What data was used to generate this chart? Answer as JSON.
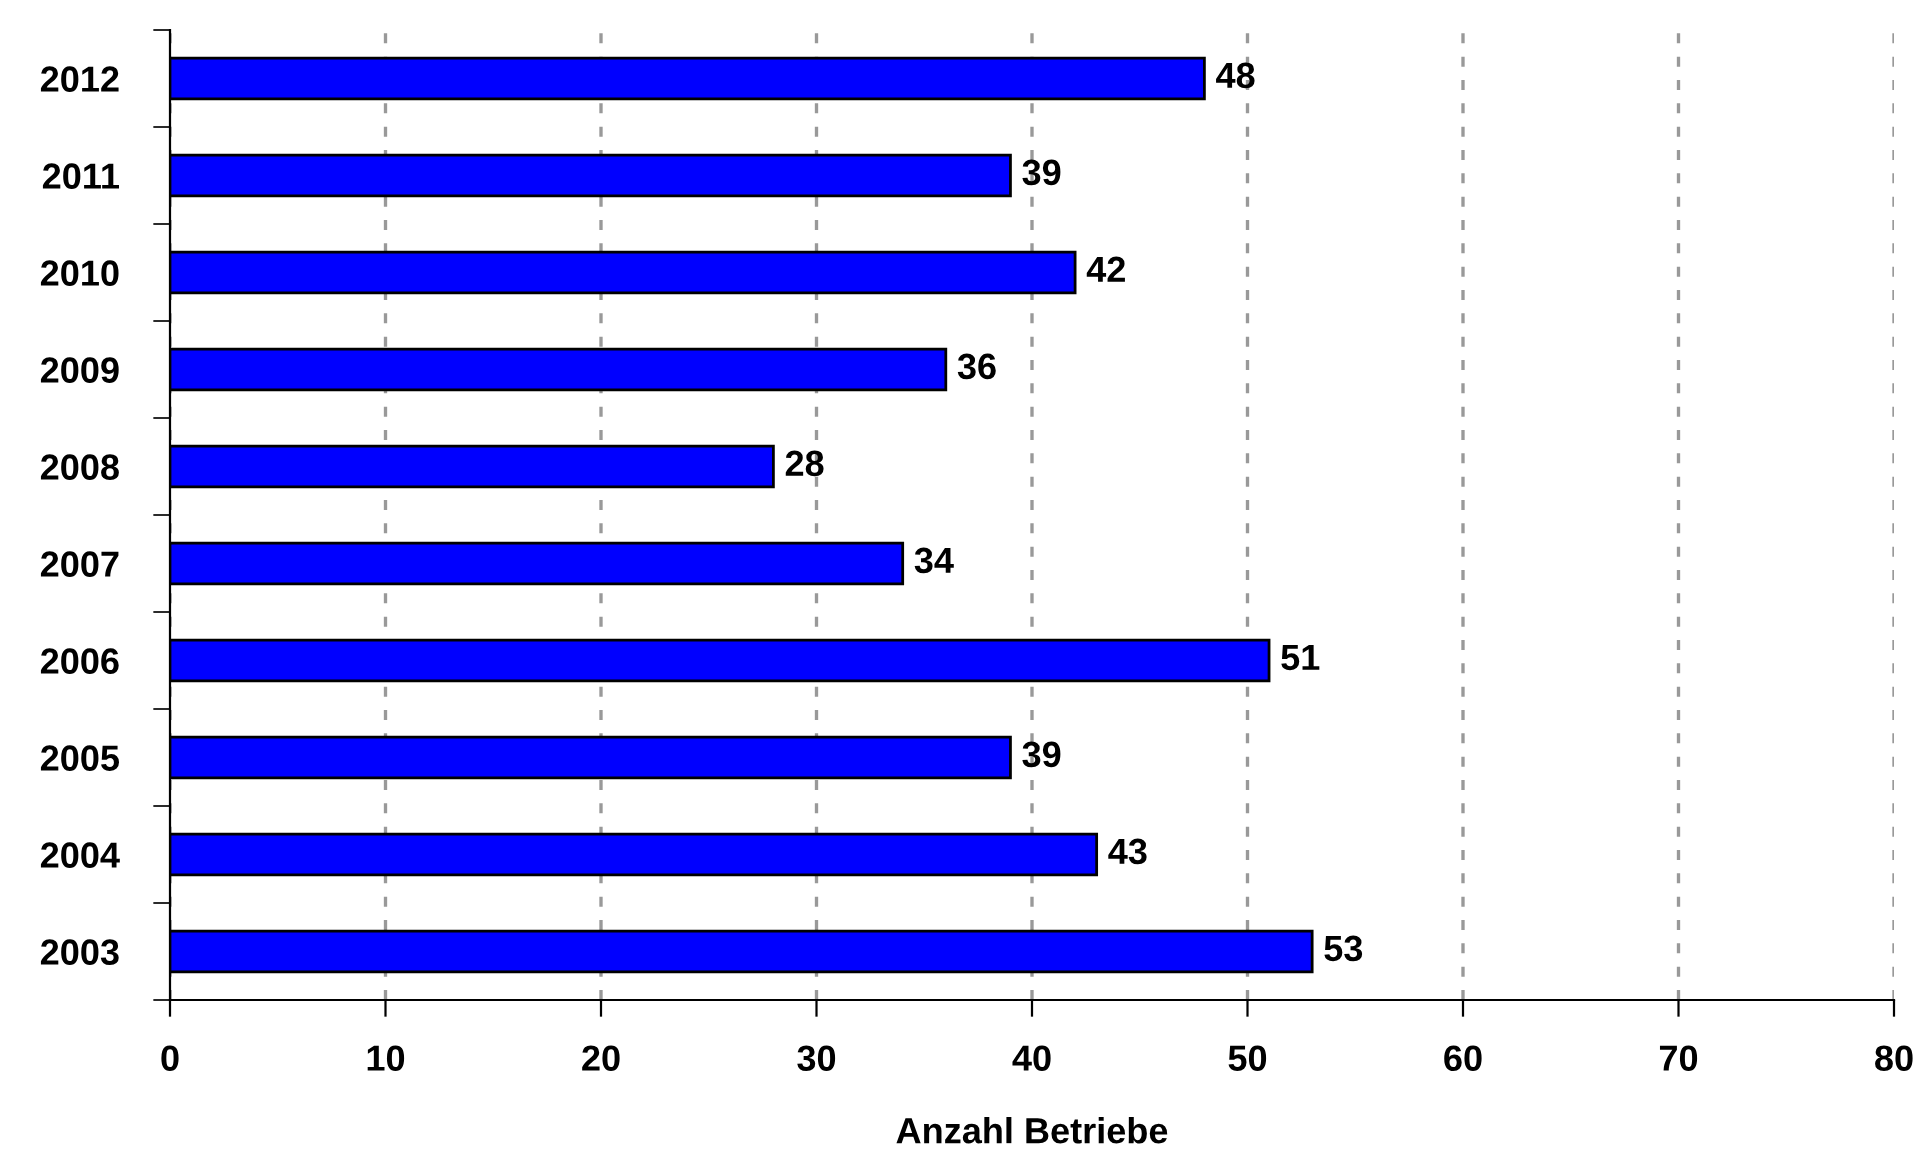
{
  "chart_data": {
    "type": "bar",
    "orientation": "horizontal",
    "xlabel": "Anzahl Betriebe",
    "categories": [
      "2012",
      "2011",
      "2010",
      "2009",
      "2008",
      "2007",
      "2006",
      "2005",
      "2004",
      "2003"
    ],
    "values": [
      48,
      39,
      42,
      36,
      28,
      34,
      51,
      39,
      43,
      53
    ],
    "color": "#0000ff",
    "xlim": [
      0,
      80
    ],
    "xticks": [
      0,
      10,
      20,
      30,
      40,
      50,
      60,
      70,
      80
    ],
    "grid": "x",
    "data_labels": true
  }
}
